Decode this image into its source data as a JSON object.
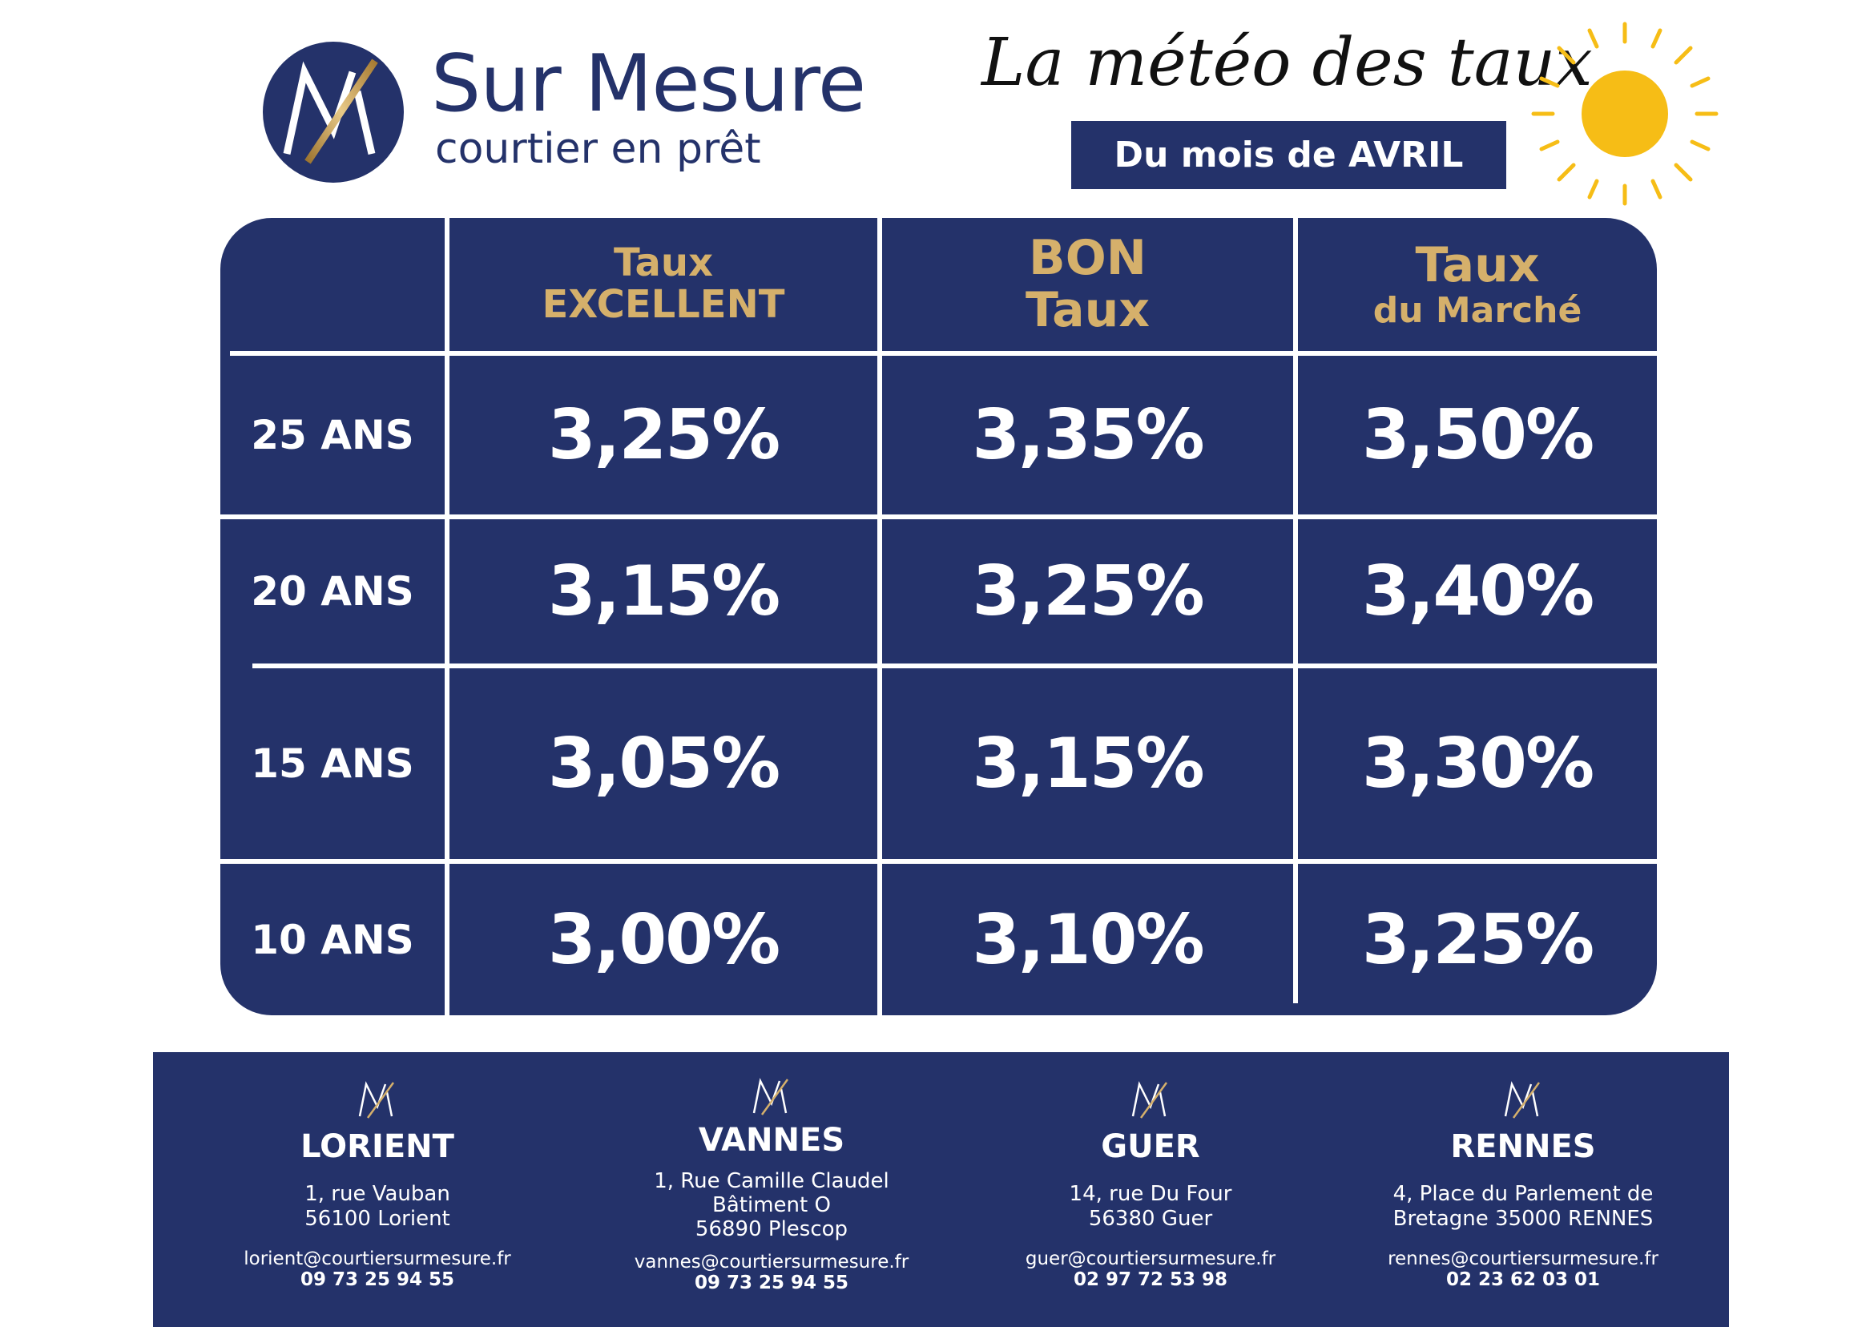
{
  "brand": {
    "name": "Sur Mesure",
    "tagline": "courtier en prêt",
    "logo_icon": "sur-mesure-m-logo"
  },
  "header": {
    "title": "La météo des taux",
    "month_label": "Du mois de AVRIL",
    "decoration_icon": "sun-icon"
  },
  "table": {
    "columns": [
      {
        "line1": "Taux",
        "line2": "EXCELLENT"
      },
      {
        "line1": "BON",
        "line2": "Taux"
      },
      {
        "line1": "Taux",
        "line2": "du Marché"
      }
    ],
    "rows": [
      {
        "duration": "25 ANS",
        "rates": [
          "3,25%",
          "3,35%",
          "3,50%"
        ]
      },
      {
        "duration": "20 ANS",
        "rates": [
          "3,15%",
          "3,25%",
          "3,40%"
        ]
      },
      {
        "duration": "15 ANS",
        "rates": [
          "3,05%",
          "3,15%",
          "3,30%"
        ]
      },
      {
        "duration": "10 ANS",
        "rates": [
          "3,00%",
          "3,10%",
          "3,25%"
        ]
      }
    ]
  },
  "agencies": [
    {
      "city": "LORIENT",
      "address": [
        "1, rue Vauban",
        "56100 Lorient"
      ],
      "email": "lorient@courtiersurmesure.fr",
      "phone": "09 73 25 94 55"
    },
    {
      "city": "VANNES",
      "address": [
        "1, Rue Camille Claudel",
        "Bâtiment O",
        "56890 Plescop"
      ],
      "email": "vannes@courtiersurmesure.fr",
      "phone": "09 73 25 94 55"
    },
    {
      "city": "GUER",
      "address": [
        "14, rue Du Four",
        "56380 Guer"
      ],
      "email": "guer@courtiersurmesure.fr",
      "phone": "02 97 72 53 98"
    },
    {
      "city": "RENNES",
      "address": [
        "4, Place du Parlement de",
        "Bretagne 35000 RENNES"
      ],
      "email": "rennes@courtiersurmesure.fr",
      "phone": "02 23 62 03 01"
    }
  ],
  "colors": {
    "navy": "#24326a",
    "gold": "#d5b06b",
    "sun": "#f6bd16",
    "white": "#ffffff"
  }
}
